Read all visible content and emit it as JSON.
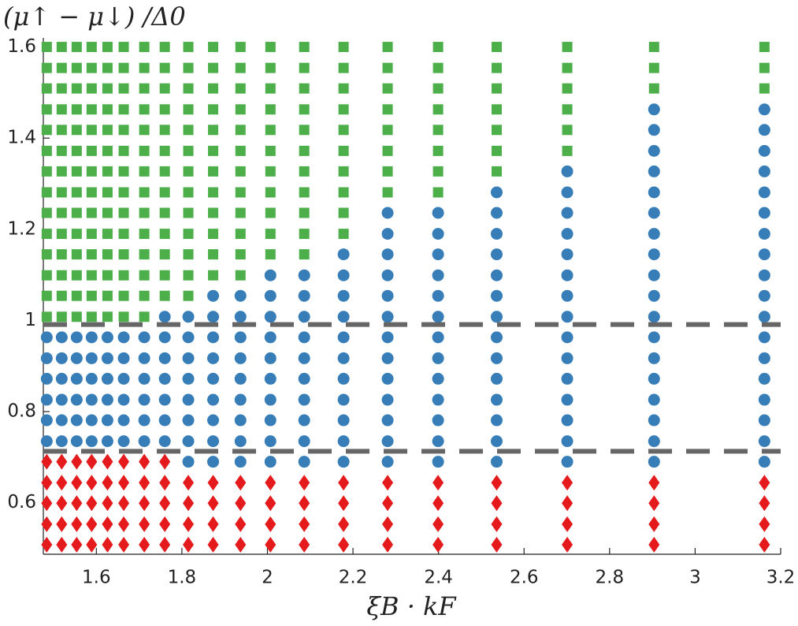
{
  "chart_data": {
    "type": "scatter",
    "x_label": "ξB · kF",
    "y_label": "(μ↑ − μ↓) /Δ0",
    "xlim": [
      1.476,
      3.2
    ],
    "ylim": [
      0.487,
      1.62
    ],
    "xticks": [
      1.6,
      1.8,
      2,
      2.2,
      2.4,
      2.6,
      2.8,
      3,
      3.2
    ],
    "yticks": [
      0.6,
      0.8,
      1,
      1.2,
      1.4,
      1.6
    ],
    "hlines": [
      0.991,
      0.713
    ],
    "hline_color": "#666666",
    "series": [
      {
        "marker": "diamond",
        "color": "#e41a1c",
        "x": [
          1.484,
          1.484,
          1.484,
          1.484,
          1.484,
          1.519,
          1.519,
          1.519,
          1.519,
          1.519,
          1.554,
          1.554,
          1.554,
          1.554,
          1.554,
          1.589,
          1.589,
          1.589,
          1.589,
          1.589,
          1.626,
          1.626,
          1.626,
          1.626,
          1.626,
          1.664,
          1.664,
          1.664,
          1.664,
          1.664,
          1.712,
          1.712,
          1.712,
          1.712,
          1.712,
          1.76,
          1.76,
          1.76,
          1.76,
          1.76,
          1.815,
          1.815,
          1.815,
          1.815,
          1.873,
          1.873,
          1.873,
          1.873,
          1.937,
          1.937,
          1.937,
          1.937,
          2.007,
          2.007,
          2.007,
          2.007,
          2.086,
          2.086,
          2.086,
          2.086,
          2.178,
          2.178,
          2.178,
          2.178,
          2.281,
          2.281,
          2.281,
          2.281,
          2.399,
          2.399,
          2.399,
          2.399,
          2.536,
          2.536,
          2.536,
          2.536,
          2.701,
          2.701,
          2.701,
          2.701,
          2.904,
          2.904,
          2.904,
          2.904,
          3.162,
          3.162,
          3.162,
          3.162
        ],
        "y": [
          0.508,
          0.553,
          0.599,
          0.644,
          0.69,
          0.508,
          0.553,
          0.599,
          0.644,
          0.69,
          0.508,
          0.553,
          0.599,
          0.644,
          0.69,
          0.508,
          0.553,
          0.599,
          0.644,
          0.69,
          0.508,
          0.553,
          0.599,
          0.644,
          0.69,
          0.508,
          0.553,
          0.599,
          0.644,
          0.69,
          0.508,
          0.553,
          0.599,
          0.644,
          0.69,
          0.508,
          0.553,
          0.599,
          0.644,
          0.69,
          0.508,
          0.553,
          0.599,
          0.644,
          0.508,
          0.553,
          0.599,
          0.644,
          0.508,
          0.553,
          0.599,
          0.644,
          0.508,
          0.553,
          0.599,
          0.644,
          0.508,
          0.553,
          0.599,
          0.644,
          0.508,
          0.553,
          0.599,
          0.644,
          0.508,
          0.553,
          0.599,
          0.644,
          0.508,
          0.553,
          0.599,
          0.644,
          0.508,
          0.553,
          0.599,
          0.644,
          0.508,
          0.553,
          0.599,
          0.644,
          0.508,
          0.553,
          0.599,
          0.644,
          0.508,
          0.553,
          0.599,
          0.644
        ]
      },
      {
        "marker": "circle",
        "color": "#377eb8",
        "x": [
          1.484,
          1.484,
          1.484,
          1.484,
          1.484,
          1.484,
          1.519,
          1.519,
          1.519,
          1.519,
          1.519,
          1.519,
          1.554,
          1.554,
          1.554,
          1.554,
          1.554,
          1.554,
          1.589,
          1.589,
          1.589,
          1.589,
          1.589,
          1.589,
          1.626,
          1.626,
          1.626,
          1.626,
          1.626,
          1.626,
          1.664,
          1.664,
          1.664,
          1.664,
          1.664,
          1.664,
          1.712,
          1.712,
          1.712,
          1.712,
          1.712,
          1.712,
          1.76,
          1.76,
          1.76,
          1.76,
          1.76,
          1.76,
          1.76,
          1.815,
          1.815,
          1.815,
          1.815,
          1.815,
          1.815,
          1.815,
          1.815,
          1.873,
          1.873,
          1.873,
          1.873,
          1.873,
          1.873,
          1.873,
          1.873,
          1.873,
          1.937,
          1.937,
          1.937,
          1.937,
          1.937,
          1.937,
          1.937,
          1.937,
          1.937,
          2.007,
          2.007,
          2.007,
          2.007,
          2.007,
          2.007,
          2.007,
          2.007,
          2.007,
          2.007,
          2.086,
          2.086,
          2.086,
          2.086,
          2.086,
          2.086,
          2.086,
          2.086,
          2.086,
          2.086,
          2.178,
          2.178,
          2.178,
          2.178,
          2.178,
          2.178,
          2.178,
          2.178,
          2.178,
          2.178,
          2.178,
          2.281,
          2.281,
          2.281,
          2.281,
          2.281,
          2.281,
          2.281,
          2.281,
          2.281,
          2.281,
          2.281,
          2.281,
          2.281,
          2.399,
          2.399,
          2.399,
          2.399,
          2.399,
          2.399,
          2.399,
          2.399,
          2.399,
          2.399,
          2.399,
          2.399,
          2.399,
          2.536,
          2.536,
          2.536,
          2.536,
          2.536,
          2.536,
          2.536,
          2.536,
          2.536,
          2.536,
          2.536,
          2.536,
          2.536,
          2.536,
          2.701,
          2.701,
          2.701,
          2.701,
          2.701,
          2.701,
          2.701,
          2.701,
          2.701,
          2.701,
          2.701,
          2.701,
          2.701,
          2.701,
          2.701,
          2.904,
          2.904,
          2.904,
          2.904,
          2.904,
          2.904,
          2.904,
          2.904,
          2.904,
          2.904,
          2.904,
          2.904,
          2.904,
          2.904,
          2.904,
          2.904,
          2.904,
          2.904,
          3.162,
          3.162,
          3.162,
          3.162,
          3.162,
          3.162,
          3.162,
          3.162,
          3.162,
          3.162,
          3.162,
          3.162,
          3.162,
          3.162,
          3.162,
          3.162,
          3.162,
          3.162
        ],
        "y": [
          0.735,
          0.781,
          0.826,
          0.872,
          0.917,
          0.963,
          0.735,
          0.781,
          0.826,
          0.872,
          0.917,
          0.963,
          0.735,
          0.781,
          0.826,
          0.872,
          0.917,
          0.963,
          0.735,
          0.781,
          0.826,
          0.872,
          0.917,
          0.963,
          0.735,
          0.781,
          0.826,
          0.872,
          0.917,
          0.963,
          0.735,
          0.781,
          0.826,
          0.872,
          0.917,
          0.963,
          0.735,
          0.781,
          0.826,
          0.872,
          0.917,
          0.963,
          0.735,
          0.781,
          0.826,
          0.872,
          0.917,
          0.963,
          1.008,
          0.69,
          0.735,
          0.781,
          0.826,
          0.872,
          0.917,
          0.963,
          1.008,
          0.69,
          0.735,
          0.781,
          0.826,
          0.872,
          0.917,
          0.963,
          1.008,
          1.054,
          0.69,
          0.735,
          0.781,
          0.826,
          0.872,
          0.917,
          0.963,
          1.008,
          1.054,
          0.69,
          0.735,
          0.781,
          0.826,
          0.872,
          0.917,
          0.963,
          1.008,
          1.054,
          1.099,
          0.69,
          0.735,
          0.781,
          0.826,
          0.872,
          0.917,
          0.963,
          1.008,
          1.054,
          1.099,
          0.69,
          0.735,
          0.781,
          0.826,
          0.872,
          0.917,
          0.963,
          1.008,
          1.054,
          1.099,
          1.145,
          0.69,
          0.735,
          0.781,
          0.826,
          0.872,
          0.917,
          0.963,
          1.008,
          1.054,
          1.099,
          1.145,
          1.19,
          1.236,
          0.69,
          0.735,
          0.781,
          0.826,
          0.872,
          0.917,
          0.963,
          1.008,
          1.054,
          1.099,
          1.145,
          1.19,
          1.236,
          0.69,
          0.735,
          0.781,
          0.826,
          0.872,
          0.917,
          0.963,
          1.008,
          1.054,
          1.099,
          1.145,
          1.19,
          1.236,
          1.281,
          0.69,
          0.735,
          0.781,
          0.826,
          0.872,
          0.917,
          0.963,
          1.008,
          1.054,
          1.099,
          1.145,
          1.19,
          1.236,
          1.281,
          1.327,
          0.69,
          0.735,
          0.781,
          0.826,
          0.872,
          0.917,
          0.963,
          1.008,
          1.054,
          1.099,
          1.145,
          1.19,
          1.236,
          1.281,
          1.327,
          1.372,
          1.418,
          1.463,
          0.69,
          0.735,
          0.781,
          0.826,
          0.872,
          0.917,
          0.963,
          1.008,
          1.054,
          1.099,
          1.145,
          1.19,
          1.236,
          1.281,
          1.327,
          1.372,
          1.418,
          1.463
        ]
      },
      {
        "marker": "square",
        "color": "#4daf4a",
        "x": [
          1.484,
          1.484,
          1.484,
          1.484,
          1.484,
          1.484,
          1.484,
          1.484,
          1.484,
          1.484,
          1.484,
          1.484,
          1.484,
          1.484,
          1.519,
          1.519,
          1.519,
          1.519,
          1.519,
          1.519,
          1.519,
          1.519,
          1.519,
          1.519,
          1.519,
          1.519,
          1.519,
          1.519,
          1.554,
          1.554,
          1.554,
          1.554,
          1.554,
          1.554,
          1.554,
          1.554,
          1.554,
          1.554,
          1.554,
          1.554,
          1.554,
          1.554,
          1.589,
          1.589,
          1.589,
          1.589,
          1.589,
          1.589,
          1.589,
          1.589,
          1.589,
          1.589,
          1.589,
          1.589,
          1.589,
          1.589,
          1.626,
          1.626,
          1.626,
          1.626,
          1.626,
          1.626,
          1.626,
          1.626,
          1.626,
          1.626,
          1.626,
          1.626,
          1.626,
          1.626,
          1.664,
          1.664,
          1.664,
          1.664,
          1.664,
          1.664,
          1.664,
          1.664,
          1.664,
          1.664,
          1.664,
          1.664,
          1.664,
          1.664,
          1.712,
          1.712,
          1.712,
          1.712,
          1.712,
          1.712,
          1.712,
          1.712,
          1.712,
          1.712,
          1.712,
          1.712,
          1.712,
          1.712,
          1.76,
          1.76,
          1.76,
          1.76,
          1.76,
          1.76,
          1.76,
          1.76,
          1.76,
          1.76,
          1.76,
          1.76,
          1.76,
          1.815,
          1.815,
          1.815,
          1.815,
          1.815,
          1.815,
          1.815,
          1.815,
          1.815,
          1.815,
          1.815,
          1.815,
          1.815,
          1.873,
          1.873,
          1.873,
          1.873,
          1.873,
          1.873,
          1.873,
          1.873,
          1.873,
          1.873,
          1.873,
          1.873,
          1.937,
          1.937,
          1.937,
          1.937,
          1.937,
          1.937,
          1.937,
          1.937,
          1.937,
          1.937,
          1.937,
          1.937,
          2.007,
          2.007,
          2.007,
          2.007,
          2.007,
          2.007,
          2.007,
          2.007,
          2.007,
          2.007,
          2.007,
          2.086,
          2.086,
          2.086,
          2.086,
          2.086,
          2.086,
          2.086,
          2.086,
          2.086,
          2.086,
          2.086,
          2.178,
          2.178,
          2.178,
          2.178,
          2.178,
          2.178,
          2.178,
          2.178,
          2.178,
          2.178,
          2.281,
          2.281,
          2.281,
          2.281,
          2.281,
          2.281,
          2.281,
          2.281,
          2.399,
          2.399,
          2.399,
          2.399,
          2.399,
          2.399,
          2.399,
          2.399,
          2.536,
          2.536,
          2.536,
          2.536,
          2.536,
          2.536,
          2.536,
          2.701,
          2.701,
          2.701,
          2.701,
          2.701,
          2.701,
          2.904,
          2.904,
          2.904,
          3.162,
          3.162,
          3.162
        ],
        "y": [
          1.008,
          1.054,
          1.099,
          1.145,
          1.19,
          1.236,
          1.281,
          1.327,
          1.372,
          1.418,
          1.463,
          1.509,
          1.554,
          1.6,
          1.008,
          1.054,
          1.099,
          1.145,
          1.19,
          1.236,
          1.281,
          1.327,
          1.372,
          1.418,
          1.463,
          1.509,
          1.554,
          1.6,
          1.008,
          1.054,
          1.099,
          1.145,
          1.19,
          1.236,
          1.281,
          1.327,
          1.372,
          1.418,
          1.463,
          1.509,
          1.554,
          1.6,
          1.008,
          1.054,
          1.099,
          1.145,
          1.19,
          1.236,
          1.281,
          1.327,
          1.372,
          1.418,
          1.463,
          1.509,
          1.554,
          1.6,
          1.008,
          1.054,
          1.099,
          1.145,
          1.19,
          1.236,
          1.281,
          1.327,
          1.372,
          1.418,
          1.463,
          1.509,
          1.554,
          1.6,
          1.008,
          1.054,
          1.099,
          1.145,
          1.19,
          1.236,
          1.281,
          1.327,
          1.372,
          1.418,
          1.463,
          1.509,
          1.554,
          1.6,
          1.008,
          1.054,
          1.099,
          1.145,
          1.19,
          1.236,
          1.281,
          1.327,
          1.372,
          1.418,
          1.463,
          1.509,
          1.554,
          1.6,
          1.054,
          1.099,
          1.145,
          1.19,
          1.236,
          1.281,
          1.327,
          1.372,
          1.418,
          1.463,
          1.509,
          1.554,
          1.6,
          1.054,
          1.099,
          1.145,
          1.19,
          1.236,
          1.281,
          1.327,
          1.372,
          1.418,
          1.463,
          1.509,
          1.554,
          1.6,
          1.099,
          1.145,
          1.19,
          1.236,
          1.281,
          1.327,
          1.372,
          1.418,
          1.463,
          1.509,
          1.554,
          1.6,
          1.099,
          1.145,
          1.19,
          1.236,
          1.281,
          1.327,
          1.372,
          1.418,
          1.463,
          1.509,
          1.554,
          1.6,
          1.145,
          1.19,
          1.236,
          1.281,
          1.327,
          1.372,
          1.418,
          1.463,
          1.509,
          1.554,
          1.6,
          1.145,
          1.19,
          1.236,
          1.281,
          1.327,
          1.372,
          1.418,
          1.463,
          1.509,
          1.554,
          1.6,
          1.19,
          1.236,
          1.281,
          1.327,
          1.372,
          1.418,
          1.463,
          1.509,
          1.554,
          1.6,
          1.281,
          1.327,
          1.372,
          1.418,
          1.463,
          1.509,
          1.554,
          1.6,
          1.281,
          1.327,
          1.372,
          1.418,
          1.463,
          1.509,
          1.554,
          1.6,
          1.327,
          1.372,
          1.418,
          1.463,
          1.509,
          1.554,
          1.6,
          1.372,
          1.418,
          1.463,
          1.509,
          1.554,
          1.6,
          1.509,
          1.554,
          1.6,
          1.509,
          1.554,
          1.6
        ]
      }
    ]
  }
}
